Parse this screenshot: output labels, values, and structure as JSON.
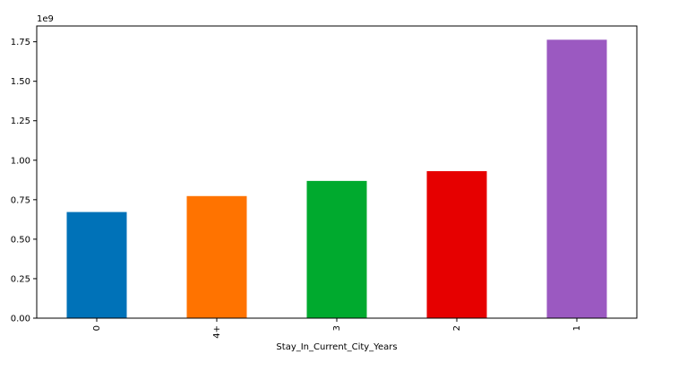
{
  "chart_data": {
    "type": "bar",
    "categories": [
      "0",
      "4+",
      "3",
      "2",
      "1"
    ],
    "values": [
      0.672,
      0.773,
      0.869,
      0.931,
      1.763
    ],
    "scale_label": "1e9",
    "xlabel": "Stay_In_Current_City_Years",
    "ylabel": "",
    "ylim": [
      0,
      1.85
    ],
    "yticks": [
      "0.00",
      "0.25",
      "0.50",
      "0.75",
      "1.00",
      "1.25",
      "1.50",
      "1.75"
    ],
    "colors": [
      "#0072b8",
      "#ff7300",
      "#00aa2e",
      "#e60000",
      "#9b59c1"
    ],
    "grid": false,
    "legend": "none"
  }
}
